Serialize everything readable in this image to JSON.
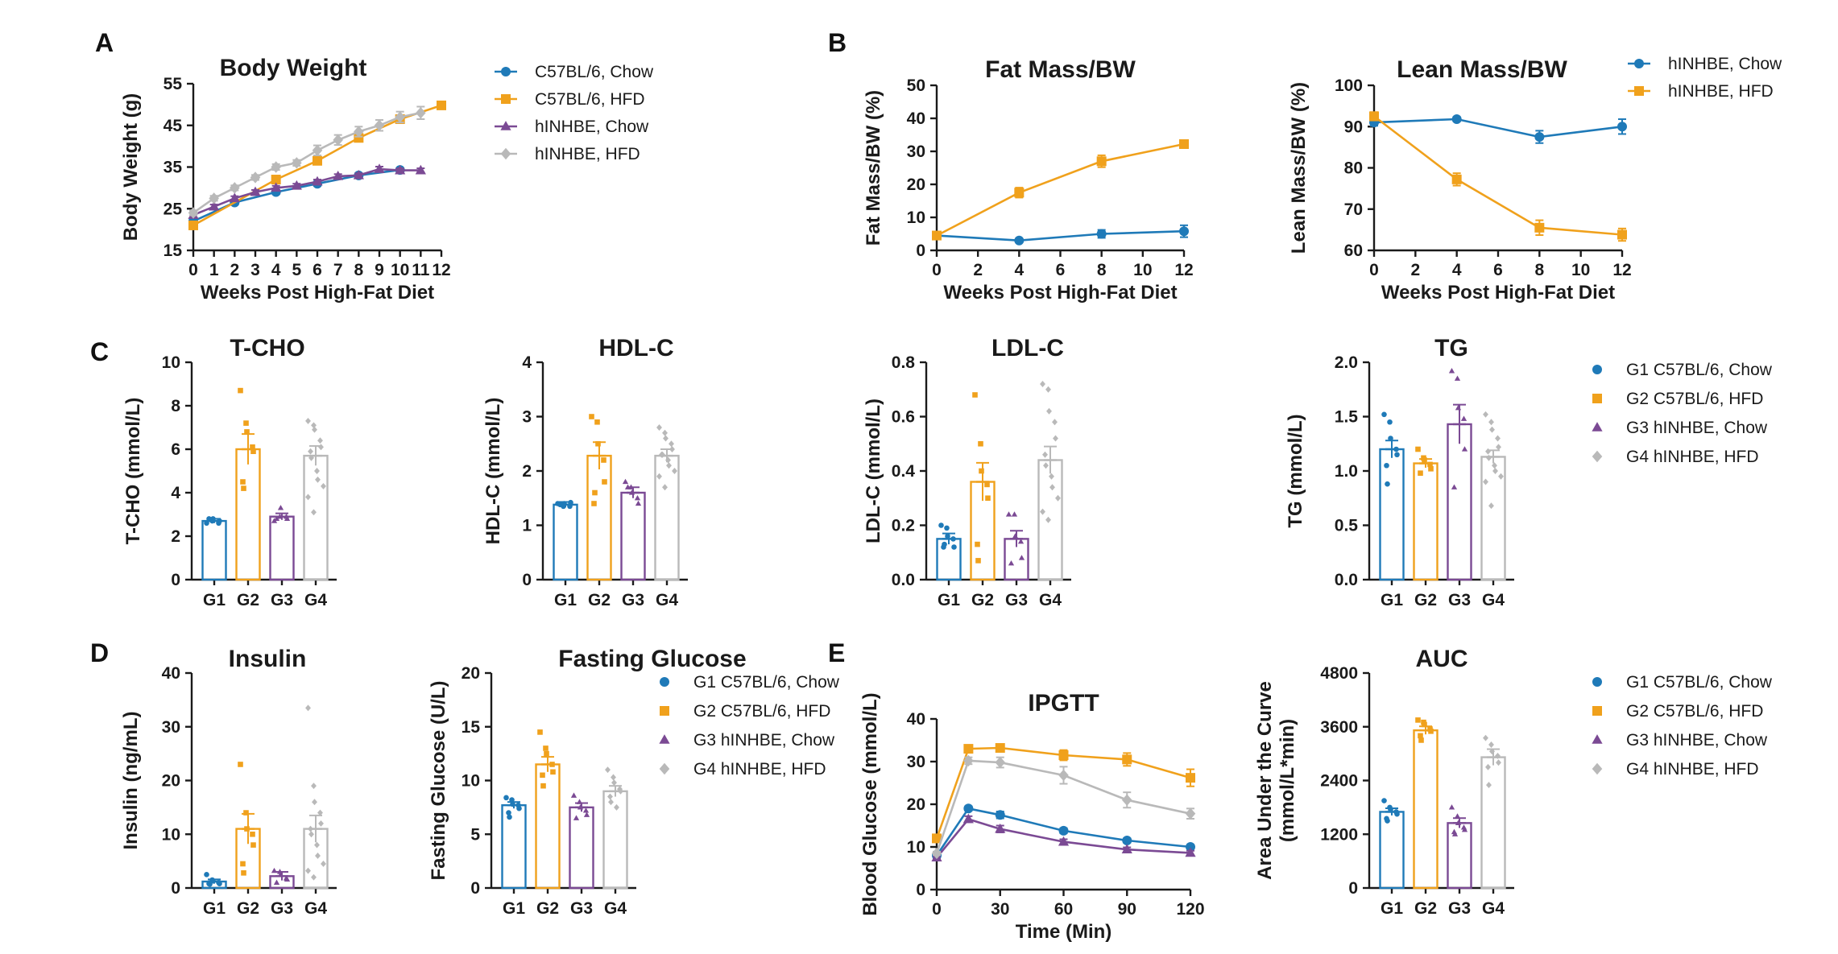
{
  "colors": {
    "C57_chow": "#1f7ab8",
    "C57_hfd": "#f0a11c",
    "h_chow": "#7b4a94",
    "h_hfd": "#b9b9b9"
  },
  "chart_data": [
    {
      "id": "body_weight",
      "panel": "A",
      "type": "line",
      "title": "Body Weight",
      "ylabel": "Body Weight (g)",
      "xlabel": "Weeks Post High-Fat Diet",
      "ylim": [
        15,
        55
      ],
      "yticks": [
        15,
        25,
        35,
        45,
        55
      ],
      "xlim": [
        0,
        12
      ],
      "xticks": [
        0,
        1,
        2,
        3,
        4,
        5,
        6,
        7,
        8,
        9,
        10,
        11,
        12
      ],
      "series": [
        {
          "name": "C57BL/6, Chow",
          "color": "#1f7ab8",
          "marker": "circle",
          "x": [
            0,
            2,
            4,
            6,
            8,
            10
          ],
          "y": [
            22,
            26.5,
            29,
            31,
            33,
            34.3
          ],
          "err": [
            0.8,
            0.5,
            0.5,
            0.5,
            0.5,
            0.5
          ]
        },
        {
          "name": "C57BL/6, HFD",
          "color": "#f0a11c",
          "marker": "square",
          "x": [
            0,
            4,
            6,
            8,
            10,
            12
          ],
          "y": [
            21,
            32,
            36.5,
            42,
            46.5,
            49.8
          ],
          "err": [
            0.8,
            0.6,
            0.6,
            0.8,
            0.8,
            0.6
          ]
        },
        {
          "name": "hINHBE, Chow",
          "color": "#7b4a94",
          "marker": "triangle",
          "x": [
            0,
            1,
            2,
            3,
            4,
            5,
            6,
            7,
            8,
            9,
            10,
            11
          ],
          "y": [
            23.5,
            25.5,
            27.5,
            29,
            30,
            30.5,
            31.5,
            32.8,
            33,
            34.5,
            34.2,
            34.2
          ],
          "err": [
            0.6,
            0.5,
            0.5,
            0.5,
            0.5,
            0.5,
            0.5,
            0.5,
            0.5,
            0.6,
            0.5,
            0.5
          ]
        },
        {
          "name": "hINHBE, HFD",
          "color": "#b9b9b9",
          "marker": "diamond",
          "x": [
            0,
            1,
            2,
            3,
            4,
            5,
            6,
            7,
            8,
            9,
            10,
            11
          ],
          "y": [
            24,
            27.5,
            30,
            32.5,
            35,
            36,
            39,
            41.5,
            43.5,
            45,
            47,
            48
          ],
          "err": [
            0.6,
            0.6,
            0.6,
            0.6,
            0.7,
            0.7,
            1.2,
            1.2,
            1.2,
            1.3,
            1.3,
            1.5
          ]
        }
      ]
    },
    {
      "id": "fat_mass",
      "panel": "B",
      "type": "line",
      "title": "Fat Mass/BW",
      "ylabel": "Fat Mass/BW (%)",
      "xlabel": "Weeks Post High-Fat Diet",
      "ylim": [
        0,
        50
      ],
      "yticks": [
        0,
        10,
        20,
        30,
        40,
        50
      ],
      "xlim": [
        0,
        12
      ],
      "xticks": [
        0,
        2,
        4,
        6,
        8,
        10,
        12
      ],
      "series": [
        {
          "name": "hINHBE, Chow",
          "color": "#1f7ab8",
          "marker": "circle",
          "x": [
            0,
            4,
            8,
            12
          ],
          "y": [
            4.5,
            3,
            5,
            5.8
          ],
          "err": [
            0.6,
            0.4,
            1.2,
            1.8
          ]
        },
        {
          "name": "hINHBE, HFD",
          "color": "#f0a11c",
          "marker": "square",
          "x": [
            0,
            4,
            8,
            12
          ],
          "y": [
            4.5,
            17.5,
            27,
            32.2
          ],
          "err": [
            0.6,
            1.5,
            1.8,
            1.2
          ]
        }
      ]
    },
    {
      "id": "lean_mass",
      "panel": "B",
      "type": "line",
      "title": "Lean Mass/BW",
      "ylabel": "Lean Mass/BW (%)",
      "xlabel": "Weeks Post High-Fat Diet",
      "ylim": [
        60,
        100
      ],
      "yticks": [
        60,
        70,
        80,
        90,
        100
      ],
      "xlim": [
        0,
        12
      ],
      "xticks": [
        0,
        2,
        4,
        6,
        8,
        10,
        12
      ],
      "series": [
        {
          "name": "hINHBE, Chow",
          "color": "#1f7ab8",
          "marker": "circle",
          "x": [
            0,
            4,
            8,
            12
          ],
          "y": [
            91,
            91.8,
            87.5,
            90
          ],
          "err": [
            0.8,
            0.5,
            1.5,
            1.8
          ]
        },
        {
          "name": "hINHBE, HFD",
          "color": "#f0a11c",
          "marker": "square",
          "x": [
            0,
            4,
            8,
            12
          ],
          "y": [
            92.5,
            77.2,
            65.5,
            63.8
          ],
          "err": [
            1,
            1.5,
            1.8,
            1.5
          ]
        }
      ]
    },
    {
      "id": "tcho",
      "panel": "C",
      "type": "bar",
      "title": "T-CHO",
      "ylabel": "T-CHO (mmol/L)",
      "ylim": [
        0,
        10
      ],
      "yticks": [
        "0",
        "2",
        "4",
        "6",
        "8",
        "10"
      ],
      "categories": [
        "G1",
        "G2",
        "G3",
        "G4"
      ],
      "values": [
        2.7,
        6.0,
        2.9,
        5.7
      ],
      "err": [
        0.1,
        0.7,
        0.15,
        0.45
      ],
      "points": [
        [
          2.6,
          2.7,
          2.8,
          2.6,
          2.7,
          2.8
        ],
        [
          8.7,
          7.2,
          6.8,
          6.1,
          5.9,
          4.5,
          4.2
        ],
        [
          2.7,
          2.9,
          3.3,
          2.9,
          2.8,
          2.8
        ],
        [
          7.3,
          7.1,
          6.9,
          6.4,
          6.1,
          5.9,
          5.6,
          5.0,
          4.6,
          4.3,
          3.8,
          3.1
        ]
      ]
    },
    {
      "id": "hdlc",
      "panel": "C",
      "type": "bar",
      "title": "HDL-C",
      "ylabel": "HDL-C (mmol/L)",
      "ylim": [
        0,
        4
      ],
      "yticks": [
        "0",
        "1",
        "2",
        "3",
        "4"
      ],
      "categories": [
        "G1",
        "G2",
        "G3",
        "G4"
      ],
      "values": [
        1.38,
        2.28,
        1.6,
        2.28
      ],
      "err": [
        0.05,
        0.25,
        0.1,
        0.12
      ],
      "points": [
        [
          1.4,
          1.35,
          1.4,
          1.35,
          1.42,
          1.38
        ],
        [
          3.0,
          2.9,
          2.5,
          2.2,
          1.8,
          1.4,
          1.6
        ],
        [
          1.8,
          1.7,
          1.6,
          1.5,
          1.4,
          1.7
        ],
        [
          2.8,
          2.7,
          2.6,
          2.5,
          2.4,
          2.3,
          2.3,
          2.2,
          2.1,
          2.0,
          1.9,
          1.7
        ]
      ]
    },
    {
      "id": "ldlc",
      "panel": "C",
      "type": "bar",
      "title": "LDL-C",
      "ylabel": "LDL-C (mmol/L)",
      "ylim": [
        0,
        0.8
      ],
      "yticks": [
        "0.0",
        "0.2",
        "0.4",
        "0.6",
        "0.8"
      ],
      "categories": [
        "G1",
        "G2",
        "G3",
        "G4"
      ],
      "values": [
        0.15,
        0.36,
        0.15,
        0.44
      ],
      "err": [
        0.02,
        0.07,
        0.03,
        0.05
      ],
      "points": [
        [
          0.2,
          0.19,
          0.16,
          0.15,
          0.12,
          0.12,
          0.13
        ],
        [
          0.68,
          0.5,
          0.4,
          0.35,
          0.3,
          0.13,
          0.07
        ],
        [
          0.24,
          0.24,
          0.16,
          0.14,
          0.08,
          0.06
        ],
        [
          0.72,
          0.7,
          0.62,
          0.58,
          0.52,
          0.46,
          0.42,
          0.38,
          0.34,
          0.3,
          0.25,
          0.22
        ]
      ]
    },
    {
      "id": "tg",
      "panel": "C",
      "type": "bar",
      "title": "TG",
      "ylabel": "TG (mmol/L)",
      "ylim": [
        0,
        2
      ],
      "yticks": [
        "0.0",
        "0.5",
        "1.0",
        "1.5",
        "2.0"
      ],
      "categories": [
        "G1",
        "G2",
        "G3",
        "G4"
      ],
      "values": [
        1.2,
        1.07,
        1.43,
        1.13
      ],
      "err": [
        0.08,
        0.04,
        0.18,
        0.06
      ],
      "points": [
        [
          1.52,
          1.45,
          1.3,
          1.2,
          1.15,
          1.05,
          0.88
        ],
        [
          1.2,
          1.12,
          1.1,
          1.06,
          1.02,
          0.98
        ],
        [
          1.92,
          1.85,
          1.58,
          1.48,
          1.2,
          0.85
        ],
        [
          1.52,
          1.45,
          1.38,
          1.3,
          1.22,
          1.18,
          1.12,
          1.05,
          1.0,
          0.95,
          0.9,
          0.68
        ]
      ]
    },
    {
      "id": "insulin",
      "panel": "D",
      "type": "bar",
      "title": "Insulin",
      "ylabel": "Insulin (ng/mL)",
      "ylim": [
        0,
        40
      ],
      "yticks": [
        "0",
        "10",
        "20",
        "30",
        "40"
      ],
      "categories": [
        "G1",
        "G2",
        "G3",
        "G4"
      ],
      "values": [
        1.2,
        11,
        2.2,
        11
      ],
      "err": [
        0.4,
        2.8,
        0.8,
        2.5
      ],
      "points": [
        [
          2.5,
          1.5,
          1.3,
          1.0,
          0.8,
          0.8,
          0.7
        ],
        [
          23,
          14,
          11,
          10,
          8,
          4.5,
          2.8
        ],
        [
          3.2,
          3.0,
          2.5,
          1.8,
          1.6,
          1.0
        ],
        [
          33.5,
          19,
          16,
          14,
          12,
          11,
          10,
          8,
          6,
          4.5,
          3.2,
          2.0
        ]
      ]
    },
    {
      "id": "fasting_glucose",
      "panel": "D",
      "type": "bar",
      "title": "Fasting Glucose",
      "ylabel": "Fasting Glucose (U/L)",
      "ylim": [
        0,
        20
      ],
      "yticks": [
        "0",
        "5",
        "10",
        "15",
        "20"
      ],
      "categories": [
        "G1",
        "G2",
        "G3",
        "G4"
      ],
      "values": [
        7.7,
        11.5,
        7.5,
        9.0
      ],
      "err": [
        0.3,
        0.7,
        0.4,
        0.5
      ],
      "points": [
        [
          8.4,
          8.2,
          7.8,
          7.7,
          7.4,
          7.0,
          6.6
        ],
        [
          14.5,
          13.0,
          12.5,
          11.5,
          10.8,
          10.5,
          9.5
        ],
        [
          8.6,
          8.0,
          7.5,
          7.2,
          6.8,
          6.5
        ],
        [
          11.0,
          10.3,
          9.8,
          9.2,
          9.0,
          8.5,
          8.0,
          7.5
        ]
      ]
    },
    {
      "id": "ipgtt",
      "panel": "E",
      "type": "line",
      "title": "IPGTT",
      "ylabel": "Blood Glucose (mmol/L)",
      "xlabel": "Time (Min)",
      "ylim": [
        0,
        40
      ],
      "yticks": [
        0,
        10,
        20,
        30,
        40
      ],
      "xlim": [
        0,
        120
      ],
      "xticks": [
        0,
        30,
        60,
        90,
        120
      ],
      "series": [
        {
          "name": "G1 C57BL/6, Chow",
          "color": "#1f7ab8",
          "marker": "circle",
          "x": [
            0,
            15,
            30,
            60,
            90,
            120
          ],
          "y": [
            8.0,
            19.0,
            17.5,
            13.8,
            11.5,
            10.0
          ],
          "err": [
            0.3,
            0.5,
            0.8,
            0.6,
            0.5,
            0.5
          ]
        },
        {
          "name": "G2 C57BL/6, HFD",
          "color": "#f0a11c",
          "marker": "square",
          "x": [
            0,
            15,
            30,
            60,
            90,
            120
          ],
          "y": [
            12.0,
            33.0,
            33.2,
            31.5,
            30.5,
            26.2
          ],
          "err": [
            0.5,
            0.8,
            0.8,
            1.2,
            1.5,
            2.0
          ]
        },
        {
          "name": "G3 hINHBE, Chow",
          "color": "#7b4a94",
          "marker": "triangle",
          "x": [
            0,
            15,
            30,
            60,
            90,
            120
          ],
          "y": [
            7.5,
            16.5,
            14.2,
            11.2,
            9.4,
            8.6
          ],
          "err": [
            0.3,
            0.7,
            0.8,
            0.6,
            0.5,
            0.5
          ]
        },
        {
          "name": "G4 hINHBE, HFD",
          "color": "#b9b9b9",
          "marker": "diamond",
          "x": [
            0,
            15,
            30,
            60,
            90,
            120
          ],
          "y": [
            8.5,
            30.2,
            29.8,
            26.8,
            21.0,
            17.8
          ],
          "err": [
            0.4,
            0.8,
            1.2,
            2.0,
            1.8,
            1.2
          ]
        }
      ]
    },
    {
      "id": "auc",
      "panel": "E",
      "type": "bar",
      "title": "AUC",
      "ylabel": "Area Under the Curve (mmol/L*min)",
      "ylabel1": "Area Under the Curve",
      "ylabel2": "(mmol/L*min)",
      "ylim": [
        0,
        4800
      ],
      "yticks": [
        "0",
        "1200",
        "2400",
        "3600",
        "4800"
      ],
      "categories": [
        "G1",
        "G2",
        "G3",
        "G4"
      ],
      "values": [
        1700,
        3520,
        1450,
        2920
      ],
      "err": [
        80,
        90,
        110,
        180
      ],
      "points": [
        [
          1950,
          1800,
          1750,
          1700,
          1650,
          1550,
          1500
        ],
        [
          3750,
          3700,
          3650,
          3550,
          3500,
          3400,
          3300
        ],
        [
          1800,
          1600,
          1450,
          1350,
          1300,
          1250,
          1200
        ],
        [
          3350,
          3200,
          3050,
          2950,
          2800,
          2700,
          2300
        ]
      ]
    }
  ],
  "legends": {
    "legend_A": [
      "C57BL/6, Chow",
      "C57BL/6, HFD",
      "hINHBE, Chow",
      "hINHBE, HFD"
    ],
    "legend_B": [
      "hINHBE, Chow",
      "hINHBE, HFD"
    ],
    "legend_C": [
      "G1 C57BL/6, Chow",
      "G2 C57BL/6, HFD",
      "G3 hINHBE, Chow",
      "G4 hINHBE, HFD"
    ],
    "legend_D": [
      "G1 C57BL/6, Chow",
      "G2 C57BL/6, HFD",
      "G3 hINHBE, Chow",
      "G4 hINHBE, HFD"
    ],
    "legend_E": [
      "G1 C57BL/6, Chow",
      "G2 C57BL/6, HFD",
      "G3 hINHBE, Chow",
      "G4 hINHBE, HFD"
    ]
  },
  "panel_labels": {
    "A": "A",
    "B": "B",
    "C": "C",
    "D": "D",
    "E": "E"
  }
}
